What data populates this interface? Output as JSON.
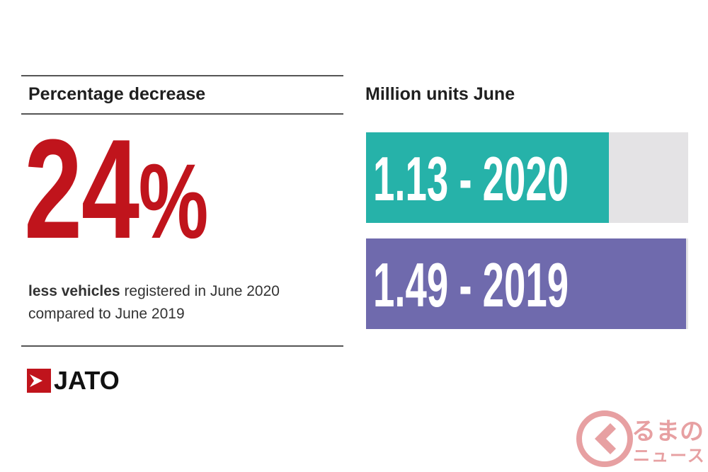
{
  "left_panel": {
    "heading": "Percentage decrease",
    "big_number": "24",
    "percent_sign": "%",
    "desc_bold": "less vehicles",
    "desc_rest_line1": " registered in June 2020",
    "desc_line2": "compared to June 2019"
  },
  "logo": {
    "text": "JATO",
    "icon": "jato-arrow-icon"
  },
  "watermark": {
    "line1": "るまの",
    "line2": "ニュース",
    "icon": "kuruma-logo-icon"
  },
  "colors": {
    "accent_red": "#c0141c",
    "bar_2020": "#26b2a9",
    "bar_2019": "#6f6aad",
    "track": "#e4e3e5",
    "watermark": "#e7a0a2"
  },
  "chart_data": {
    "type": "bar",
    "orientation": "horizontal",
    "title": "Million units June",
    "categories": [
      "2020",
      "2019"
    ],
    "values": [
      1.13,
      1.49
    ],
    "labels": [
      "1.13 - 2020",
      "1.49 - 2019"
    ],
    "xlim": [
      0,
      1.5
    ]
  }
}
